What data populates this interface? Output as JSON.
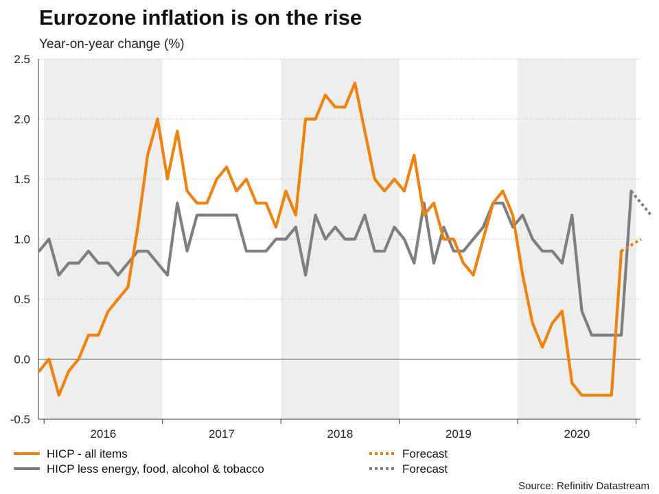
{
  "chart_data": {
    "type": "line",
    "title": "Eurozone inflation is on the rise",
    "subtitle": "Year-on-year change (%)",
    "xlabel": "",
    "ylabel": "",
    "ylim": [
      -0.5,
      2.5
    ],
    "yticks": [
      -0.5,
      0.0,
      0.5,
      1.0,
      1.5,
      2.0,
      2.5
    ],
    "ytick_labels": [
      "-0.5",
      "0.0",
      "0.5",
      "1.0",
      "1.5",
      "2.0",
      "2.5"
    ],
    "x_start": "2015-12",
    "year_labels": [
      "2016",
      "2017",
      "2018",
      "2019",
      "2020"
    ],
    "shaded_years": [
      "2016",
      "2018",
      "2020"
    ],
    "grid": true,
    "series": [
      {
        "name": "HICP - all items",
        "color": "#f0820f",
        "values": [
          -0.1,
          0.0,
          -0.3,
          -0.1,
          0.0,
          0.2,
          0.2,
          0.4,
          0.5,
          0.6,
          1.1,
          1.7,
          2.0,
          1.5,
          1.9,
          1.4,
          1.3,
          1.3,
          1.5,
          1.6,
          1.4,
          1.5,
          1.3,
          1.3,
          1.1,
          1.4,
          1.2,
          2.0,
          2.0,
          2.2,
          2.1,
          2.1,
          2.3,
          1.9,
          1.5,
          1.4,
          1.5,
          1.4,
          1.7,
          1.2,
          1.3,
          1.0,
          1.0,
          0.8,
          0.7,
          1.0,
          1.3,
          1.4,
          1.2,
          0.7,
          0.3,
          0.1,
          0.3,
          0.4,
          -0.2,
          -0.3,
          -0.3,
          -0.3,
          -0.3,
          0.9
        ]
      },
      {
        "name": "HICP less energy, food, alcohol & tobacco",
        "color": "#7f7f7f",
        "values": [
          0.9,
          1.0,
          0.7,
          0.8,
          0.8,
          0.9,
          0.8,
          0.8,
          0.7,
          0.8,
          0.9,
          0.9,
          0.8,
          0.7,
          1.3,
          0.9,
          1.2,
          1.2,
          1.2,
          1.2,
          1.2,
          0.9,
          0.9,
          0.9,
          1.0,
          1.0,
          1.1,
          0.7,
          1.2,
          1.0,
          1.1,
          1.0,
          1.0,
          1.2,
          0.9,
          0.9,
          1.1,
          1.0,
          0.8,
          1.3,
          0.8,
          1.1,
          0.9,
          0.9,
          1.0,
          1.1,
          1.3,
          1.3,
          1.1,
          1.2,
          1.0,
          0.9,
          0.9,
          0.8,
          1.2,
          0.4,
          0.2,
          0.2,
          0.2,
          0.2,
          1.4
        ]
      }
    ],
    "forecasts": [
      {
        "name": "Forecast",
        "color": "#f0820f",
        "start_index": 59,
        "values": [
          0.9,
          0.95,
          1.0
        ]
      },
      {
        "name": "Forecast",
        "color": "#7f7f7f",
        "start_index": 60,
        "values": [
          1.4,
          1.3,
          1.2
        ]
      }
    ],
    "source": "Source: Refinitiv Datastream"
  }
}
